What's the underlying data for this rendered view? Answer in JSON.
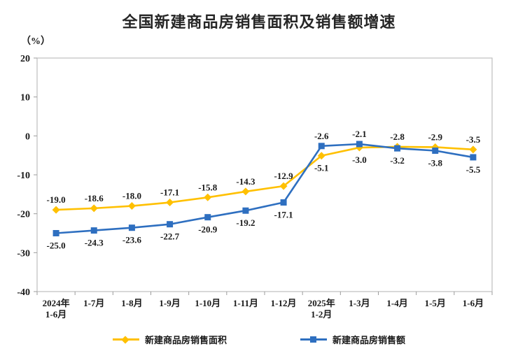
{
  "title": "全国新建商品房销售面积及销售额增速",
  "axis_unit_label": "（%）",
  "chart_data": {
    "type": "line",
    "title": "全国新建商品房销售面积及销售额增速",
    "unit": "%",
    "categories": [
      "2024年\n1-6月",
      "1-7月",
      "1-8月",
      "1-9月",
      "1-10月",
      "1-11月",
      "1-12月",
      "2025年\n1-2月",
      "1-3月",
      "1-4月",
      "1-5月",
      "1-6月"
    ],
    "series": [
      {
        "name": "新建商品房销售面积",
        "color": "#FFC000",
        "marker": "diamond",
        "values": [
          -19.0,
          -18.6,
          -18.0,
          -17.1,
          -15.8,
          -14.3,
          -12.9,
          -5.1,
          -3.0,
          -2.8,
          -2.9,
          -3.5
        ]
      },
      {
        "name": "新建商品房销售额",
        "color": "#2E6FC0",
        "marker": "square",
        "values": [
          -25.0,
          -24.3,
          -23.6,
          -22.7,
          -20.9,
          -19.2,
          -17.1,
          -2.6,
          -2.1,
          -3.2,
          -3.8,
          -5.5
        ]
      }
    ],
    "ylim": [
      -40,
      20
    ],
    "yticks": [
      20,
      10,
      0,
      -10,
      -20,
      -30,
      -40
    ],
    "grid": false,
    "legend_position": "bottom",
    "data_labels": true,
    "xlabel": "",
    "ylabel": "（%）"
  },
  "colors": {
    "plot_border": "#BFBFBF",
    "tick": "#9c9c9c",
    "label_text": "#1A1A1A",
    "title_text": "#262626"
  }
}
